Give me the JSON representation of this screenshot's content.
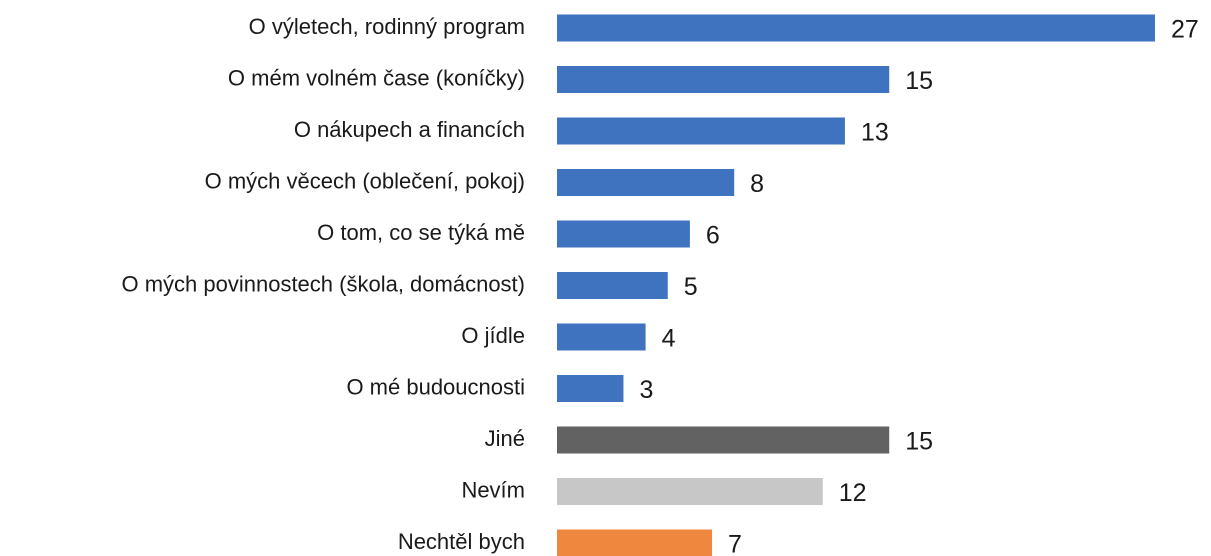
{
  "chart_data": {
    "type": "barh",
    "categories": [
      "O výletech, rodinný program",
      "O mém volném čase (koníčky)",
      "O nákupech a financích",
      "O mých věcech (oblečení, pokoj)",
      "O tom, co se týká mě",
      "O mých povinnostech (škola, domácnost)",
      "O jídle",
      "O mé budoucnosti",
      "Jiné",
      "Nevím",
      "Nechtěl bych"
    ],
    "values": [
      27,
      15,
      13,
      8,
      6,
      5,
      4,
      3,
      15,
      12,
      7
    ],
    "colors": [
      "#3f72bf",
      "#3f72bf",
      "#3f72bf",
      "#3f72bf",
      "#3f72bf",
      "#3f72bf",
      "#3f72bf",
      "#3f72bf",
      "#626262",
      "#c7c7c7",
      "#f0873e"
    ]
  }
}
